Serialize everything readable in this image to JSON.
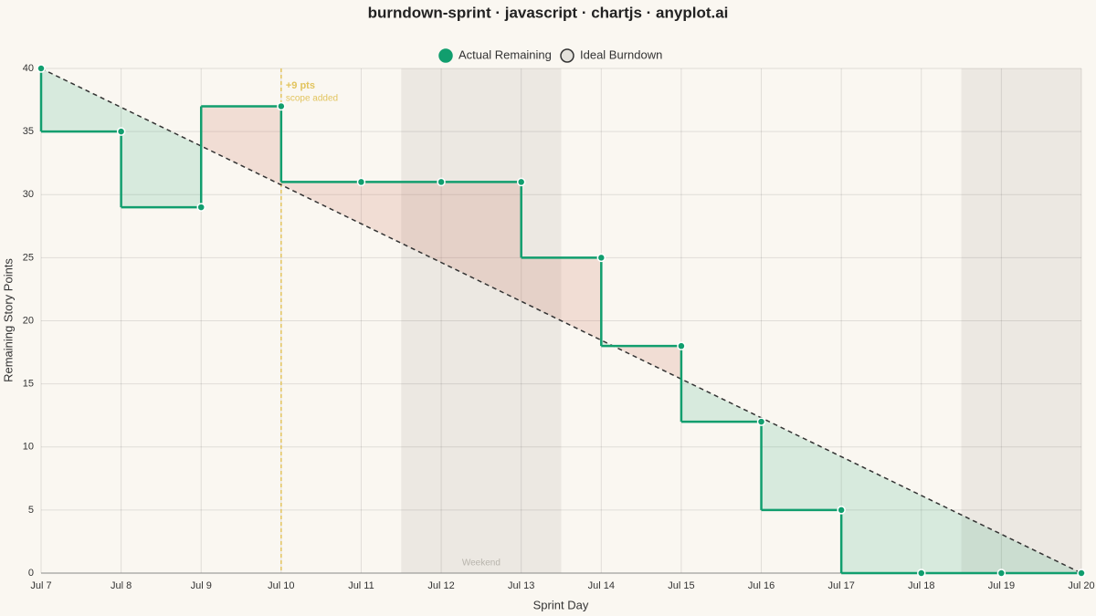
{
  "chart_data": {
    "type": "step-line",
    "title": "burndown-sprint · javascript · chartjs · anyplot.ai",
    "x_label": "Sprint Day",
    "y_label": "Remaining Story Points",
    "categories": [
      "Jul 7",
      "Jul 8",
      "Jul 9",
      "Jul 10",
      "Jul 11",
      "Jul 12",
      "Jul 13",
      "Jul 14",
      "Jul 15",
      "Jul 16",
      "Jul 17",
      "Jul 18",
      "Jul 19",
      "Jul 20"
    ],
    "series": [
      {
        "name": "Actual Remaining",
        "color": "#119e6e",
        "values": [
          40,
          35,
          29,
          37,
          31,
          31,
          31,
          25,
          18,
          12,
          5,
          0,
          0,
          0
        ]
      },
      {
        "name": "Ideal Burndown",
        "color": "#333333",
        "values": [
          40,
          36.92,
          33.85,
          30.77,
          27.69,
          24.62,
          21.54,
          18.46,
          15.38,
          12.31,
          9.23,
          6.15,
          3.08,
          0
        ]
      }
    ],
    "ylim": [
      0,
      40
    ],
    "yticks": [
      0,
      5,
      10,
      15,
      20,
      25,
      30,
      35,
      40
    ],
    "grid": true,
    "legend": "top",
    "fill_below_color": "rgba(17,158,110,0.15)",
    "fill_above_color": "rgba(205,120,100,0.2)",
    "annotation": {
      "x": "Jul 10",
      "label": "+9 pts",
      "sublabel": "scope added",
      "color": "#e2c45e"
    },
    "weekends": [
      {
        "start": "Jul 12",
        "end": "Jul 13",
        "label": "Weekend"
      },
      {
        "start": "Jul 19",
        "end": "Jul 20"
      }
    ]
  }
}
